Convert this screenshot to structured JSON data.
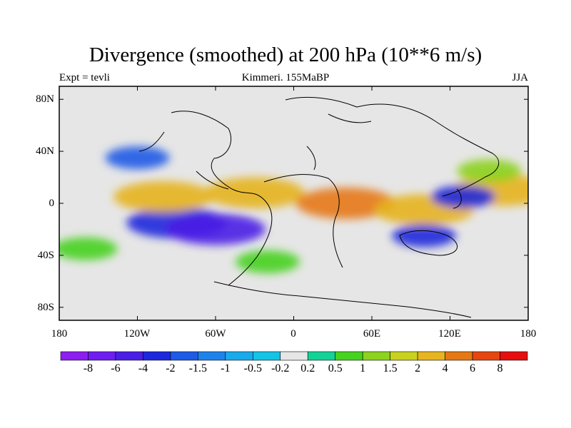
{
  "header": {
    "title": "Divergence (smoothed) at 200 hPa (10**6 m/s)",
    "left": "Expt = tevli",
    "center": "Kimmeri. 155MaBP",
    "right": "JJA"
  },
  "axes": {
    "lat_labels": [
      "80N",
      "40N",
      "0",
      "40S",
      "80S"
    ],
    "lon_labels": [
      "180",
      "120W",
      "60W",
      "0",
      "60E",
      "120E",
      "180"
    ]
  },
  "colorbar": {
    "labels": [
      "-8",
      "-6",
      "-4",
      "-2",
      "-1.5",
      "-1",
      "-0.5",
      "-0.2",
      "0.2",
      "0.5",
      "1",
      "1.5",
      "2",
      "4",
      "6",
      "8"
    ],
    "colors": [
      "#8c1ef0",
      "#6e1ef0",
      "#4b1ee6",
      "#1e28dc",
      "#1e5ae6",
      "#1e82eb",
      "#19aaeb",
      "#14c3e6",
      "#e6e6e6",
      "#14d296",
      "#46d21e",
      "#8cd21e",
      "#c8d21e",
      "#e6b41e",
      "#e67814",
      "#e6460f",
      "#e60f0f"
    ]
  },
  "chart_data": {
    "type": "heatmap",
    "title": "Divergence (smoothed) at 200 hPa (10**6 m/s)",
    "experiment": "Expt = tevli",
    "period": "Kimmeri. 155MaBP",
    "season": "JJA",
    "x_range": [
      -180,
      180
    ],
    "y_range": [
      -90,
      90
    ],
    "contour_levels": [
      -8,
      -6,
      -4,
      -2,
      -1.5,
      -1,
      -0.5,
      -0.2,
      0.2,
      0.5,
      1,
      1.5,
      2,
      4,
      6,
      8
    ],
    "features": [
      {
        "lon": -90,
        "lat": -15,
        "value": -3,
        "desc": "broad convergence band"
      },
      {
        "lon": -60,
        "lat": -20,
        "value": -4
      },
      {
        "lon": -100,
        "lat": 5,
        "value": 4,
        "desc": "equatorial divergence"
      },
      {
        "lon": -30,
        "lat": 8,
        "value": 3
      },
      {
        "lon": 40,
        "lat": 0,
        "value": 6,
        "desc": "strong divergence"
      },
      {
        "lon": 100,
        "lat": -5,
        "value": 3
      },
      {
        "lon": 160,
        "lat": 10,
        "value": 4
      },
      {
        "lon": 130,
        "lat": 5,
        "value": -2.5,
        "desc": "convergence cell"
      },
      {
        "lon": 100,
        "lat": -25,
        "value": -2
      },
      {
        "lon": -120,
        "lat": 35,
        "value": -1.5
      },
      {
        "lon": 150,
        "lat": 25,
        "value": 1.5
      },
      {
        "lon": -160,
        "lat": -35,
        "value": 1
      },
      {
        "lon": -20,
        "lat": -45,
        "value": 1
      }
    ]
  }
}
